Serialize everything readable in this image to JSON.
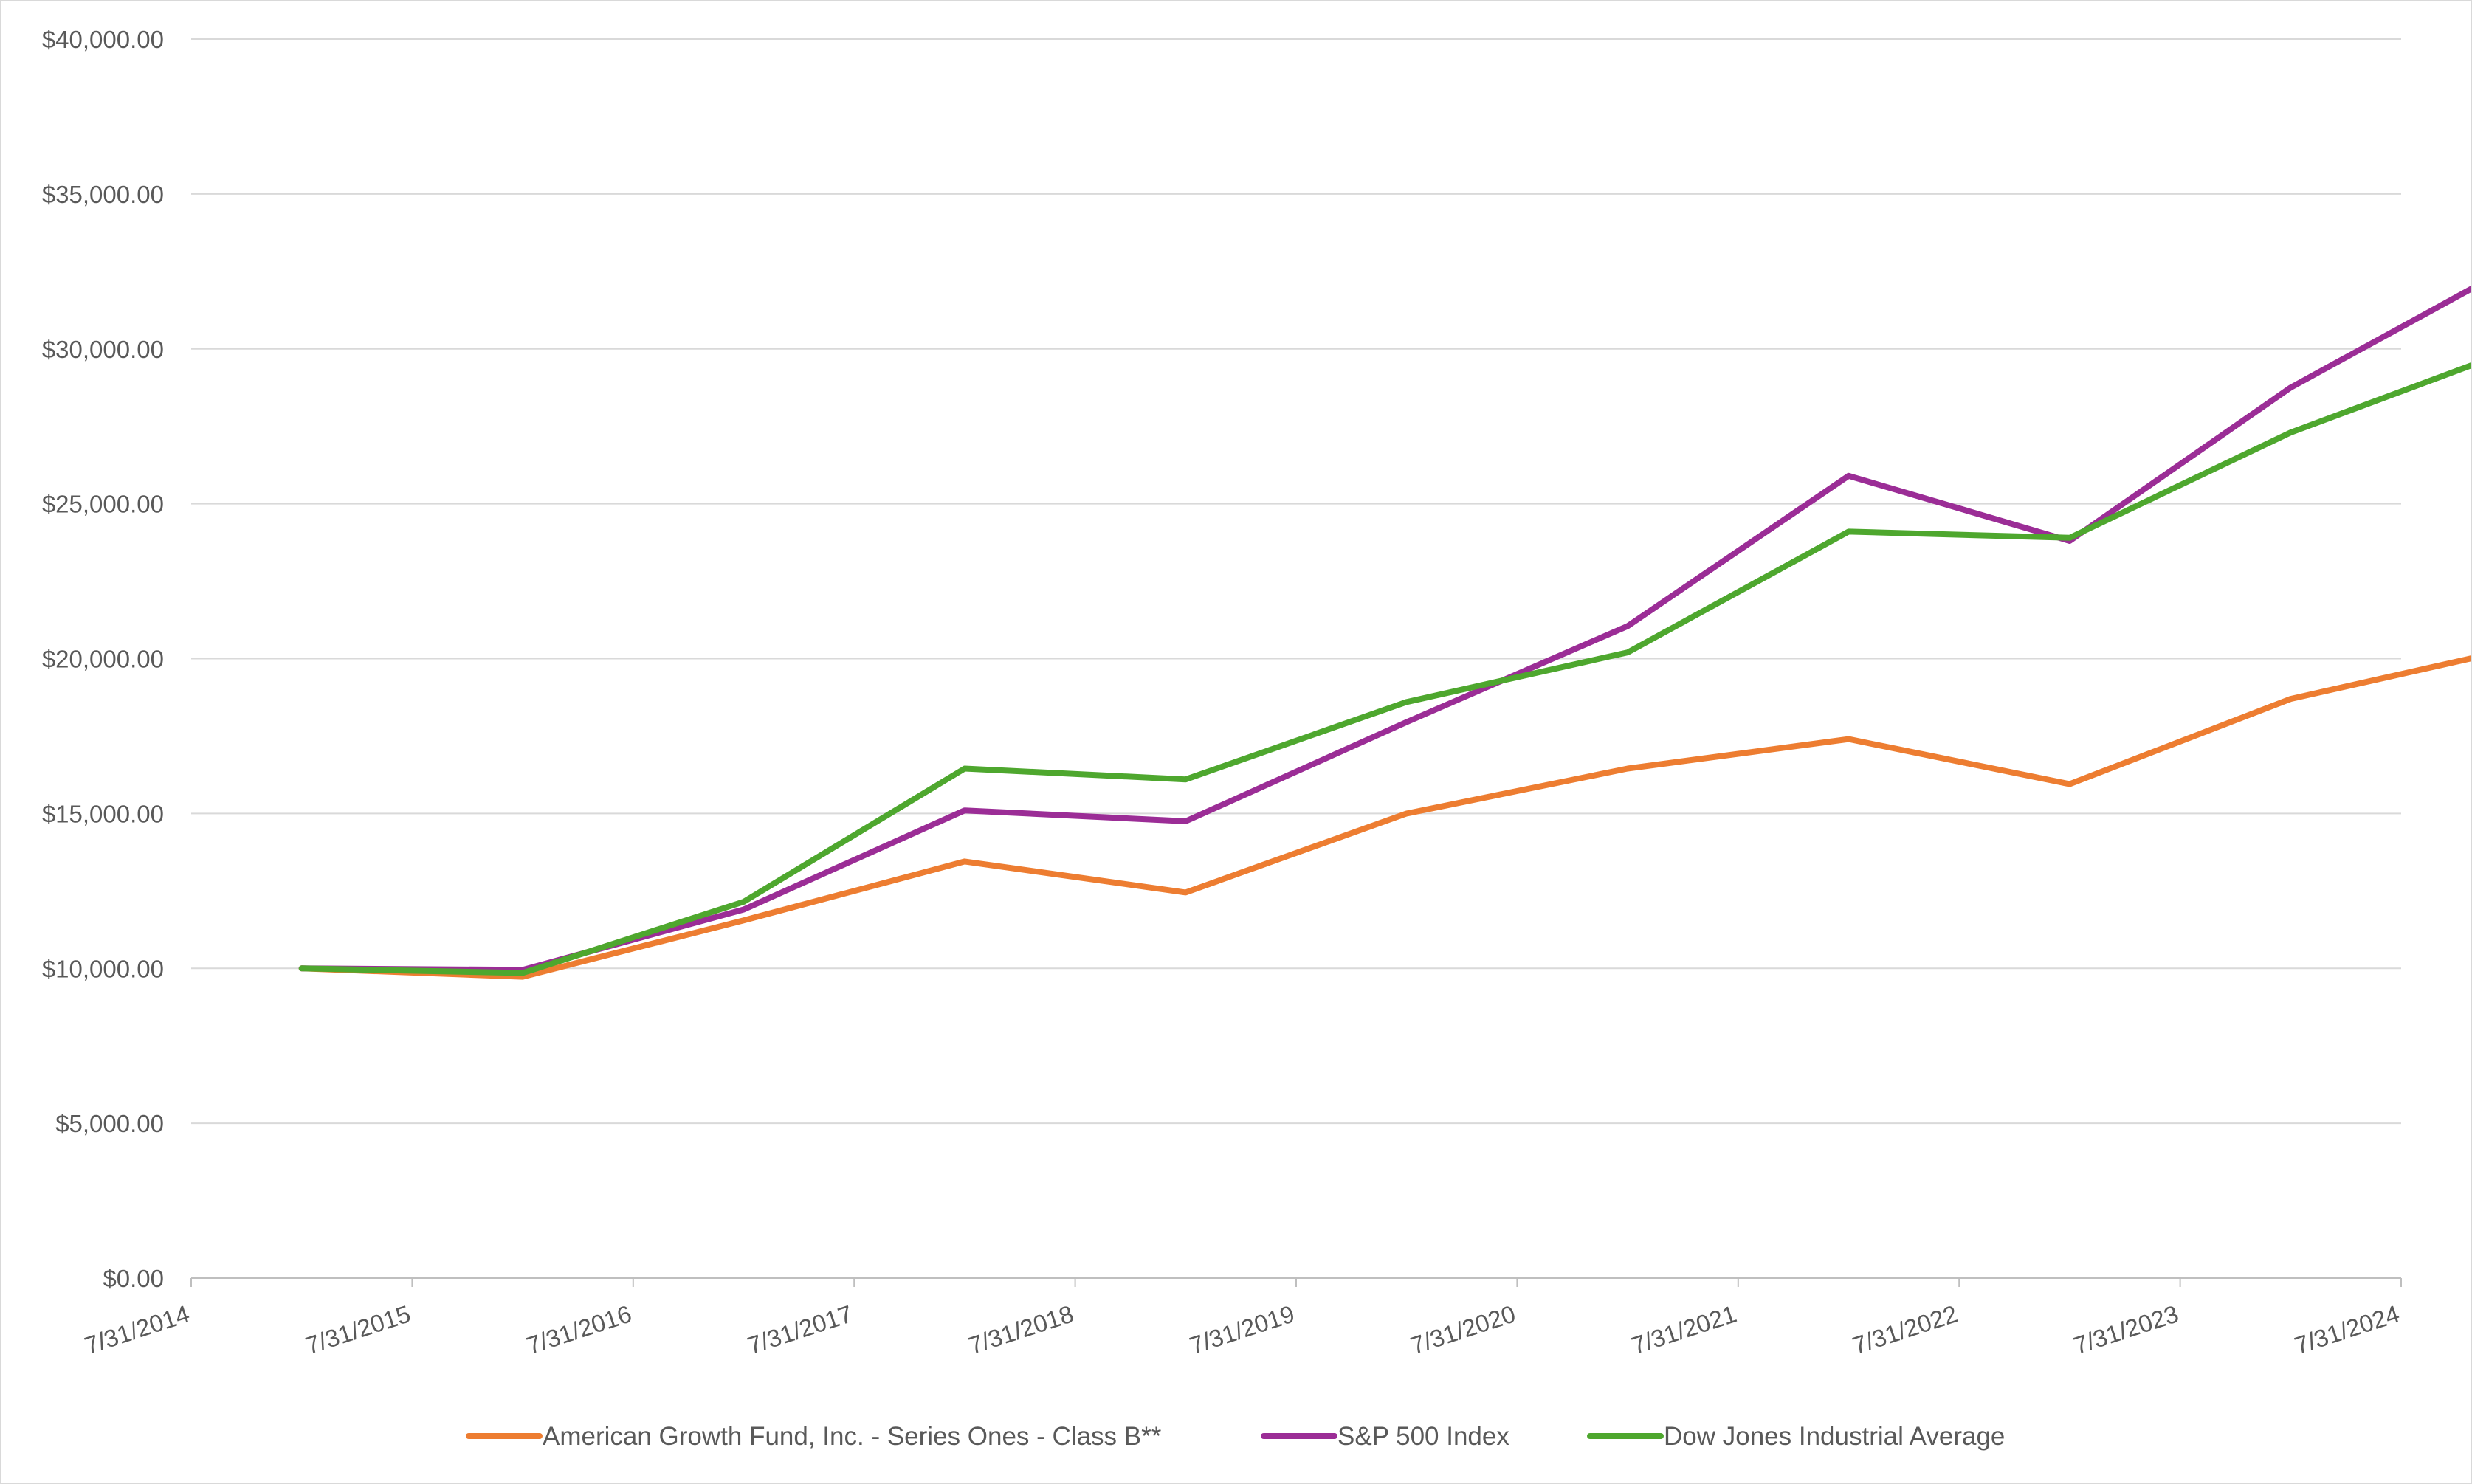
{
  "chart_data": {
    "type": "line",
    "title": "",
    "xlabel": "",
    "ylabel": "",
    "x_tick_labels": [
      "7/31/2014",
      "7/31/2015",
      "7/31/2016",
      "7/31/2017",
      "7/31/2018",
      "7/31/2019",
      "7/31/2020",
      "7/31/2021",
      "7/31/2022",
      "7/31/2023",
      "7/31/2024"
    ],
    "y_tick_labels": [
      "$0.00",
      "$5,000.00",
      "$10,000.00",
      "$15,000.00",
      "$20,000.00",
      "$25,000.00",
      "$30,000.00",
      "$35,000.00",
      "$40,000.00"
    ],
    "ylim": [
      0,
      40000
    ],
    "grid": true,
    "legend_position": "bottom",
    "x": [
      "7/31/2014",
      "7/31/2015",
      "7/31/2016",
      "7/31/2017",
      "7/31/2018",
      "7/31/2019",
      "7/31/2020",
      "7/31/2021",
      "7/31/2022",
      "7/31/2023",
      "7/31/2024"
    ],
    "series": [
      {
        "name": "American Growth Fund, Inc. - Series Ones - Class B**",
        "color": "#ED7D31",
        "values": [
          10000,
          9730,
          11550,
          13450,
          12450,
          15000,
          16450,
          17400,
          15950,
          18700,
          20300
        ]
      },
      {
        "name": "S&P 500 Index",
        "color": "#9B2D96",
        "values": [
          10000,
          9950,
          11900,
          15100,
          14750,
          17950,
          21050,
          25900,
          23800,
          28750,
          32650
        ]
      },
      {
        "name": "Dow Jones Industrial Average",
        "color": "#4EA72E",
        "values": [
          10000,
          9850,
          12150,
          16450,
          16100,
          18600,
          20200,
          24100,
          23900,
          27300,
          29950
        ]
      }
    ]
  }
}
